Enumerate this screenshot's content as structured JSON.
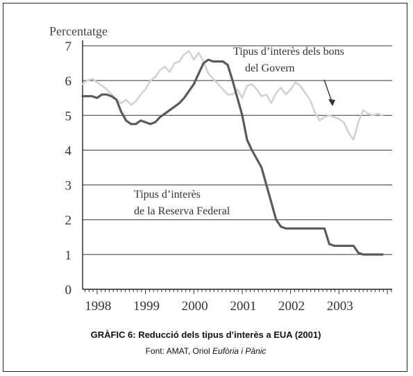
{
  "caption": {
    "title": "GRÀFIC 6: Reducció dels tipus d’interès a EUA  (2001)",
    "source_prefix": "Font: AMAT, Oriol ",
    "source_book": "Eufòria i Pànic"
  },
  "chart_data": {
    "type": "line",
    "ylabel": "Percentatge",
    "ylim": [
      0,
      7
    ],
    "yticks": [
      "0",
      "1",
      "2",
      "3",
      "4",
      "5",
      "6",
      "7"
    ],
    "xlim": [
      1997.7,
      2004.1
    ],
    "xticks": [
      {
        "label": "1998",
        "value": 1998
      },
      {
        "label": "1999",
        "value": 1999
      },
      {
        "label": "2000",
        "value": 2000
      },
      {
        "label": "2001",
        "value": 2001
      },
      {
        "label": "2002",
        "value": 2002
      },
      {
        "label": "2003",
        "value": 2003
      }
    ],
    "grid": true,
    "series": [
      {
        "name": "Tipus d’interès dels bons del Govern",
        "color": "#d2d2d2",
        "points": [
          [
            1997.7,
            5.9
          ],
          [
            1997.8,
            6.0
          ],
          [
            1997.9,
            6.05
          ],
          [
            1998.0,
            5.95
          ],
          [
            1998.1,
            5.85
          ],
          [
            1998.2,
            5.75
          ],
          [
            1998.3,
            5.6
          ],
          [
            1998.4,
            5.45
          ],
          [
            1998.5,
            5.35
          ],
          [
            1998.6,
            5.45
          ],
          [
            1998.7,
            5.3
          ],
          [
            1998.8,
            5.4
          ],
          [
            1998.9,
            5.6
          ],
          [
            1999.0,
            5.75
          ],
          [
            1999.1,
            6.0
          ],
          [
            1999.2,
            6.1
          ],
          [
            1999.3,
            6.3
          ],
          [
            1999.4,
            6.4
          ],
          [
            1999.5,
            6.25
          ],
          [
            1999.6,
            6.5
          ],
          [
            1999.7,
            6.55
          ],
          [
            1999.8,
            6.75
          ],
          [
            1999.9,
            6.85
          ],
          [
            2000.0,
            6.6
          ],
          [
            2000.1,
            6.8
          ],
          [
            2000.2,
            6.55
          ],
          [
            2000.3,
            6.2
          ],
          [
            2000.4,
            6.05
          ],
          [
            2000.5,
            5.9
          ],
          [
            2000.6,
            5.75
          ],
          [
            2000.7,
            5.6
          ],
          [
            2000.8,
            5.6
          ],
          [
            2000.9,
            5.75
          ],
          [
            2001.0,
            5.5
          ],
          [
            2001.1,
            5.85
          ],
          [
            2001.2,
            5.9
          ],
          [
            2001.3,
            5.75
          ],
          [
            2001.4,
            5.55
          ],
          [
            2001.5,
            5.6
          ],
          [
            2001.6,
            5.35
          ],
          [
            2001.7,
            5.65
          ],
          [
            2001.8,
            5.8
          ],
          [
            2001.9,
            5.6
          ],
          [
            2002.0,
            5.75
          ],
          [
            2002.1,
            5.95
          ],
          [
            2002.2,
            5.85
          ],
          [
            2002.3,
            5.65
          ],
          [
            2002.4,
            5.45
          ],
          [
            2002.5,
            5.1
          ],
          [
            2002.6,
            4.85
          ],
          [
            2002.7,
            4.95
          ],
          [
            2002.8,
            5.0
          ],
          [
            2002.9,
            4.95
          ],
          [
            2003.0,
            4.9
          ],
          [
            2003.1,
            4.8
          ],
          [
            2003.2,
            4.5
          ],
          [
            2003.3,
            4.3
          ],
          [
            2003.4,
            4.8
          ],
          [
            2003.5,
            5.15
          ],
          [
            2003.6,
            5.05
          ],
          [
            2003.7,
            5.0
          ],
          [
            2003.8,
            5.05
          ],
          [
            2003.9,
            5.0
          ]
        ]
      },
      {
        "name": "Tipus d’interès de la Reserva Federal",
        "color": "#5a5a5a",
        "points": [
          [
            1997.7,
            5.55
          ],
          [
            1997.9,
            5.55
          ],
          [
            1998.0,
            5.5
          ],
          [
            1998.1,
            5.6
          ],
          [
            1998.2,
            5.6
          ],
          [
            1998.3,
            5.55
          ],
          [
            1998.4,
            5.45
          ],
          [
            1998.5,
            5.1
          ],
          [
            1998.6,
            4.85
          ],
          [
            1998.7,
            4.75
          ],
          [
            1998.8,
            4.75
          ],
          [
            1998.9,
            4.85
          ],
          [
            1999.0,
            4.8
          ],
          [
            1999.1,
            4.75
          ],
          [
            1999.2,
            4.8
          ],
          [
            1999.3,
            4.95
          ],
          [
            1999.4,
            5.05
          ],
          [
            1999.5,
            5.15
          ],
          [
            1999.6,
            5.25
          ],
          [
            1999.7,
            5.35
          ],
          [
            1999.8,
            5.5
          ],
          [
            1999.9,
            5.7
          ],
          [
            2000.0,
            5.9
          ],
          [
            2000.1,
            6.2
          ],
          [
            2000.2,
            6.5
          ],
          [
            2000.3,
            6.6
          ],
          [
            2000.4,
            6.55
          ],
          [
            2000.5,
            6.55
          ],
          [
            2000.6,
            6.55
          ],
          [
            2000.7,
            6.45
          ],
          [
            2000.8,
            6.0
          ],
          [
            2000.9,
            5.5
          ],
          [
            2001.0,
            5.0
          ],
          [
            2001.1,
            4.3
          ],
          [
            2001.2,
            4.0
          ],
          [
            2001.3,
            3.75
          ],
          [
            2001.4,
            3.5
          ],
          [
            2001.5,
            3.0
          ],
          [
            2001.6,
            2.5
          ],
          [
            2001.7,
            2.0
          ],
          [
            2001.8,
            1.8
          ],
          [
            2001.9,
            1.75
          ],
          [
            2002.0,
            1.75
          ],
          [
            2002.1,
            1.75
          ],
          [
            2002.2,
            1.75
          ],
          [
            2002.3,
            1.75
          ],
          [
            2002.4,
            1.75
          ],
          [
            2002.5,
            1.75
          ],
          [
            2002.6,
            1.75
          ],
          [
            2002.7,
            1.75
          ],
          [
            2002.8,
            1.3
          ],
          [
            2002.9,
            1.25
          ],
          [
            2003.0,
            1.25
          ],
          [
            2003.1,
            1.25
          ],
          [
            2003.2,
            1.25
          ],
          [
            2003.3,
            1.25
          ],
          [
            2003.4,
            1.05
          ],
          [
            2003.5,
            1.0
          ],
          [
            2003.6,
            1.0
          ],
          [
            2003.7,
            1.0
          ],
          [
            2003.8,
            1.0
          ],
          [
            2003.9,
            1.0
          ]
        ]
      }
    ],
    "annotations": {
      "bonds_line1": "Tipus d’interès dels bons",
      "bonds_line2": "del Govern",
      "fed_line1": "Tipus d’interès",
      "fed_line2": "de la Reserva Federal"
    }
  }
}
